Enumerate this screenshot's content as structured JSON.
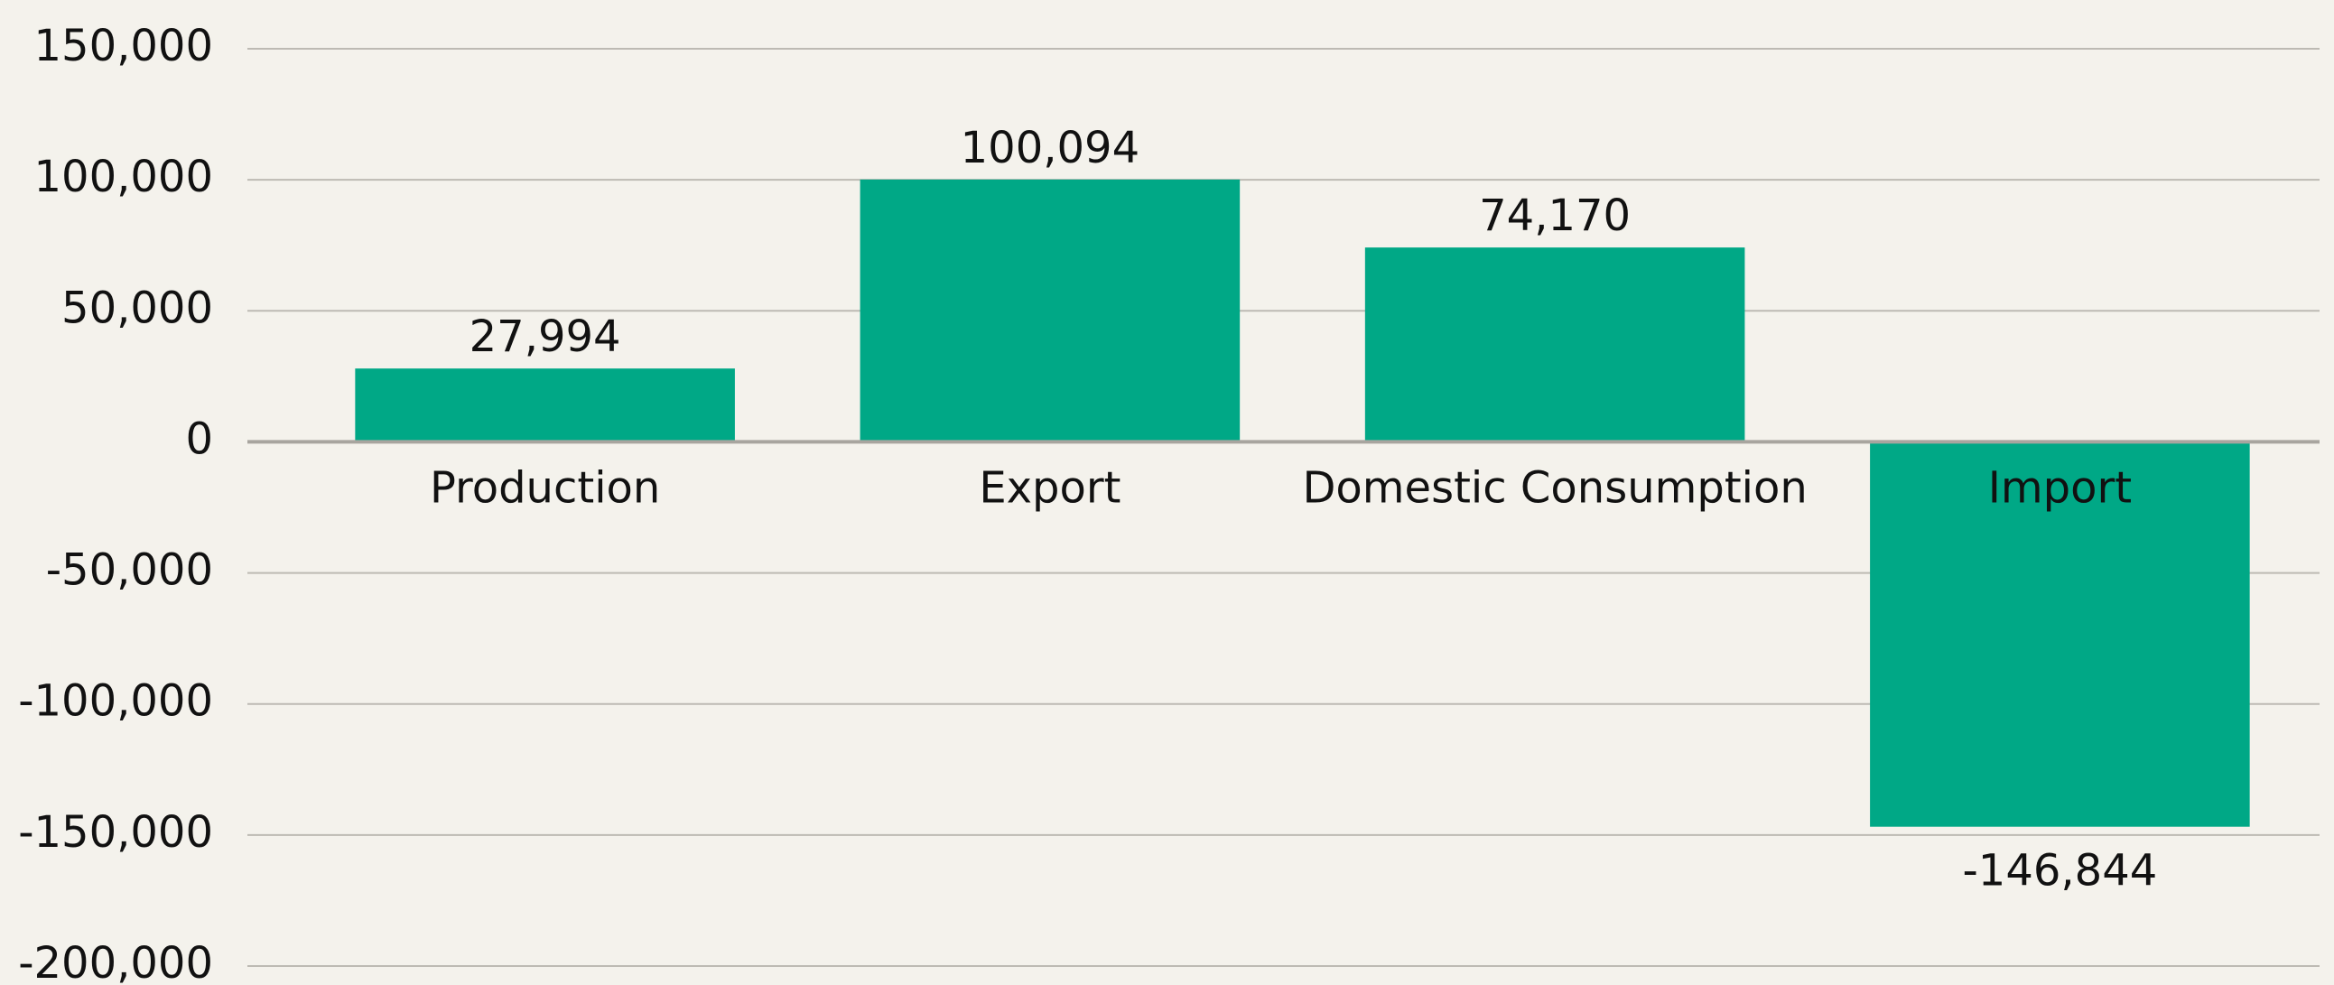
{
  "chart_data": {
    "type": "bar",
    "categories": [
      "Production",
      "Export",
      "Domestic Consumption",
      "Import"
    ],
    "values": [
      27994,
      100094,
      74170,
      -146844
    ],
    "value_labels": [
      "27,994",
      "100,094",
      "74,170",
      "-146,844"
    ],
    "color": "#00a886",
    "ylim": [
      -200000,
      150000
    ],
    "yticks": [
      {
        "value": -200000,
        "label": "-200,000"
      },
      {
        "value": -150000,
        "label": "-150,000"
      },
      {
        "value": -100000,
        "label": "-100,000"
      },
      {
        "value": -50000,
        "label": "-50,000"
      },
      0,
      {
        "value": 50000,
        "label": "50,000"
      },
      {
        "value": 100000,
        "label": "100,000"
      },
      {
        "value": 150000,
        "label": "150,000"
      }
    ],
    "grid": true
  }
}
